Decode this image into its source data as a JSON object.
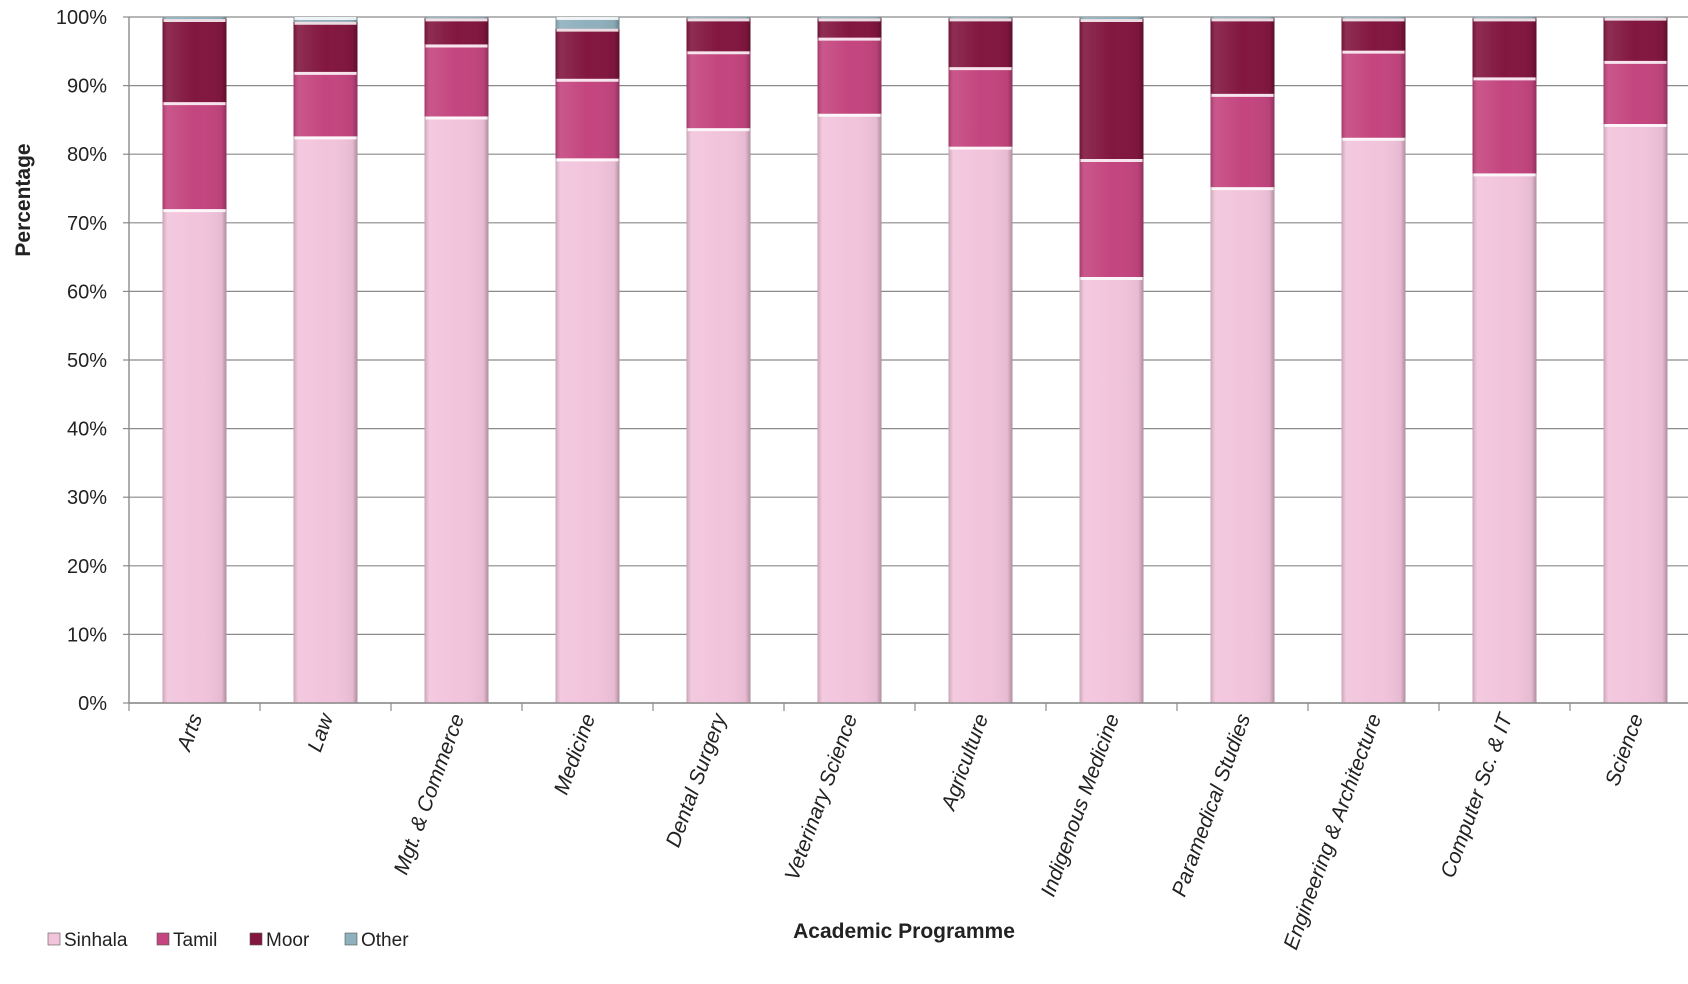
{
  "chart_data": {
    "type": "bar",
    "stacked": true,
    "percent_stacked": true,
    "title": "",
    "xlabel": "Academic Programme",
    "ylabel": "Percentage",
    "ylim": [
      0,
      100
    ],
    "y_ticks": [
      "0%",
      "10%",
      "20%",
      "30%",
      "40%",
      "50%",
      "60%",
      "70%",
      "80%",
      "90%",
      "100%"
    ],
    "grid": true,
    "legend_position": "bottom-left",
    "categories": [
      "Arts",
      "Law",
      "Mgt. & Commerce",
      "Medicine",
      "Dental Surgery",
      "Veterinary Science",
      "Agriculture",
      "Indigenous Medicine",
      "Paramedical Studies",
      "Engineering & Architecture",
      "Computer Sc. & IT",
      "Science"
    ],
    "series": [
      {
        "name": "Sinhala",
        "color": "#f2c4dc",
        "values": [
          72.0,
          82.6,
          85.5,
          79.4,
          83.8,
          85.9,
          81.1,
          62.1,
          75.2,
          82.4,
          77.2,
          84.4
        ]
      },
      {
        "name": "Tamil",
        "color": "#c4457f",
        "values": [
          15.6,
          9.4,
          10.5,
          11.6,
          11.2,
          11.1,
          11.6,
          17.2,
          13.6,
          12.7,
          14.0,
          9.2
        ]
      },
      {
        "name": "Moor",
        "color": "#82163f",
        "values": [
          12.1,
          7.3,
          3.8,
          7.3,
          4.8,
          2.8,
          7.1,
          20.4,
          11.0,
          4.7,
          8.6,
          6.3
        ]
      },
      {
        "name": "Other",
        "color": "#8fb0bd",
        "values": [
          0.3,
          0.7,
          0.2,
          1.7,
          0.2,
          0.2,
          0.2,
          0.3,
          0.2,
          0.2,
          0.2,
          0.1
        ]
      }
    ]
  }
}
